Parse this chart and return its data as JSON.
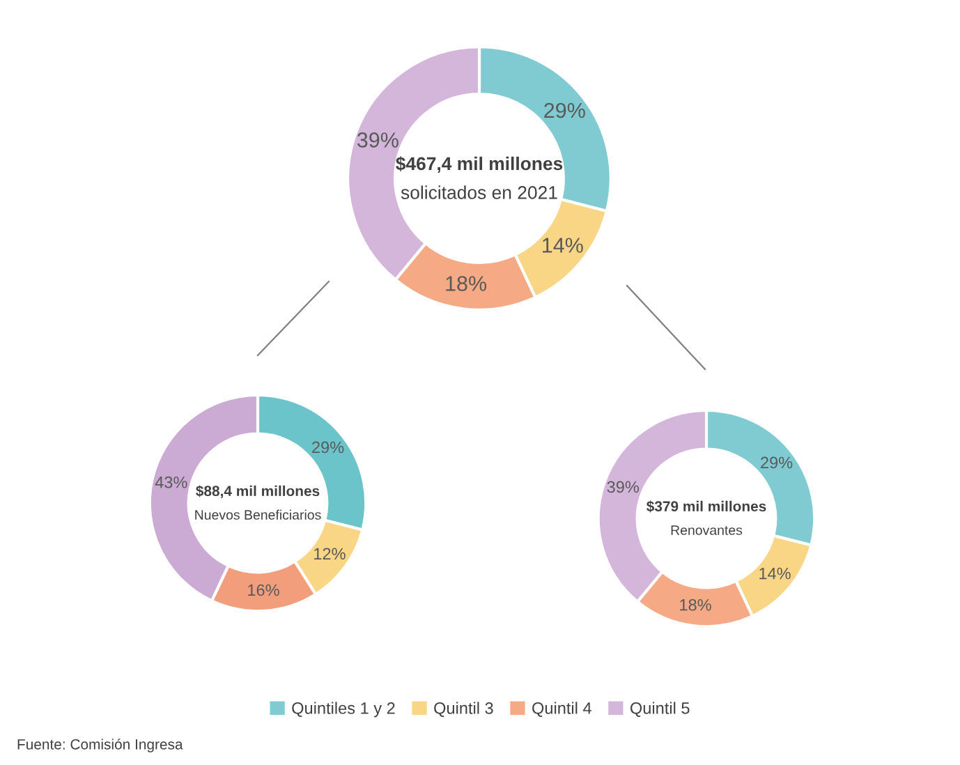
{
  "chart_data": [
    {
      "type": "donut",
      "title": "$467,4 mil millones",
      "subtitle": "solicitados en 2021",
      "categories": [
        "Quintiles 1 y 2",
        "Quintil 3",
        "Quintil 4",
        "Quintil 5"
      ],
      "values": [
        29,
        14,
        18,
        39
      ],
      "colors": [
        "#80cbd2",
        "#f8d686",
        "#f5a985",
        "#d3b6d9"
      ],
      "value_labels": [
        "29%",
        "14%",
        "18%",
        "39%"
      ],
      "legend": "bottom",
      "annotations": [
        "Fuente: Comisión Ingresa"
      ]
    },
    {
      "type": "donut",
      "title": "$88,4 mil millones",
      "subtitle": "Nuevos Beneficiarios",
      "values": [
        29,
        12,
        16,
        43
      ],
      "colors": [
        "#6cc4cb",
        "#f8d686",
        "#f29d7b",
        "#cbabd3"
      ],
      "value_labels": [
        "29%",
        "12%",
        "16%",
        "43%"
      ]
    },
    {
      "type": "donut",
      "title": "$379 mil millones",
      "subtitle": "Renovantes",
      "values": [
        29,
        14,
        18,
        39
      ],
      "colors": [
        "#80cbd2",
        "#f8d686",
        "#f5a985",
        "#d3b6d9"
      ],
      "value_labels": [
        "29%",
        "14%",
        "18%",
        "39%"
      ]
    }
  ]
}
